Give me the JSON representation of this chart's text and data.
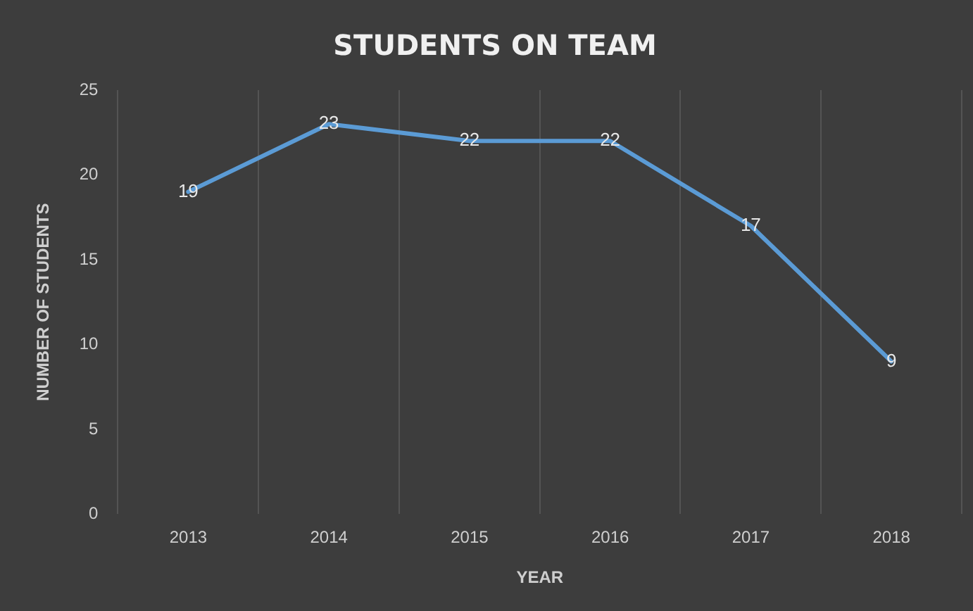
{
  "chart_data": {
    "type": "line",
    "title": "STUDENTS ON TEAM",
    "xlabel": "YEAR",
    "ylabel": "NUMBER OF STUDENTS",
    "categories": [
      "2013",
      "2014",
      "2015",
      "2016",
      "2017",
      "2018"
    ],
    "series": [
      {
        "color": "#5b9bd5",
        "values": [
          19,
          23,
          22,
          22,
          17,
          9
        ]
      }
    ],
    "ylim": [
      0,
      25
    ],
    "yticks": [
      0,
      5,
      10,
      15,
      20,
      25
    ],
    "grid": "x",
    "legend": false,
    "marker": "none",
    "line_style": "solid",
    "data_labels": true
  }
}
